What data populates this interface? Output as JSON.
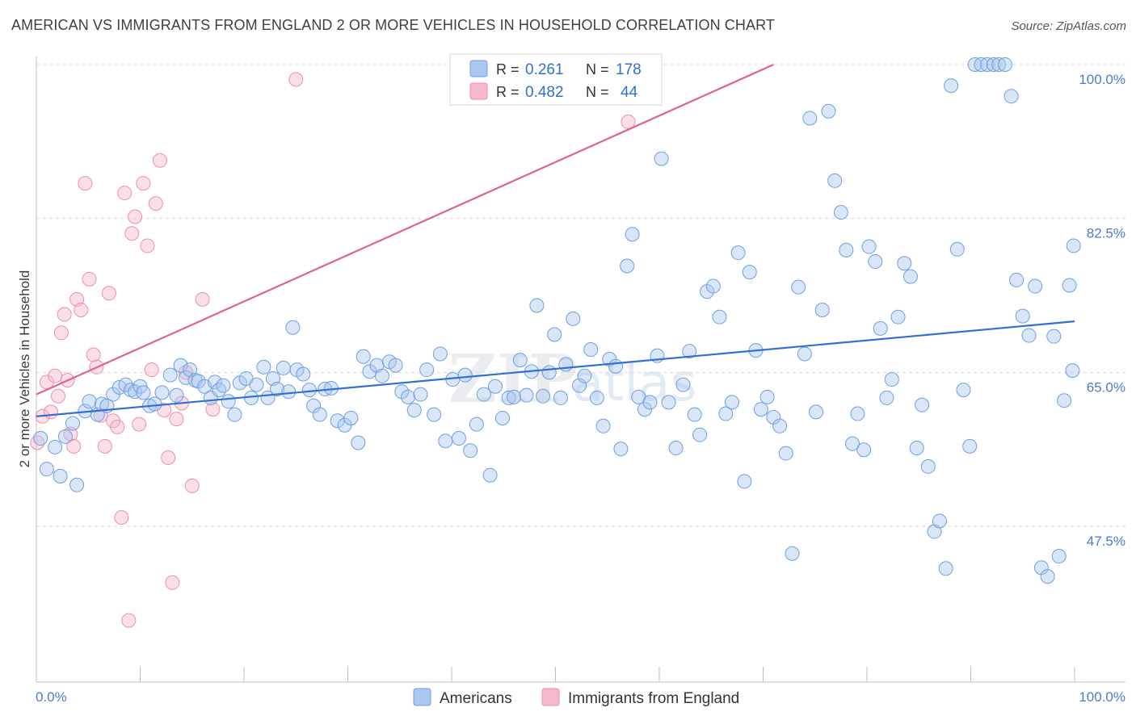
{
  "header": {
    "title": "AMERICAN VS IMMIGRANTS FROM ENGLAND 2 OR MORE VEHICLES IN HOUSEHOLD CORRELATION CHART",
    "source": "Source: ZipAtlas.com"
  },
  "watermark": {
    "part1": "ZIP",
    "part2": "atlas"
  },
  "legend_top": {
    "rows": [
      {
        "r_label": "R =",
        "r_value": "0.261",
        "n_label": "N =",
        "n_value": "178",
        "color": "#a9c7ef"
      },
      {
        "r_label": "R =",
        "r_value": "0.482",
        "n_label": "N =",
        "n_value": "44",
        "color": "#f6b9cb"
      }
    ]
  },
  "legend_bottom": {
    "items": [
      {
        "label": "Americans",
        "color": "#a9c7ef"
      },
      {
        "label": "Immigrants from England",
        "color": "#f6b9cb"
      }
    ]
  },
  "chart_data": {
    "type": "scatter",
    "title": "AMERICAN VS IMMIGRANTS FROM ENGLAND 2 OR MORE VEHICLES IN HOUSEHOLD CORRELATION CHART",
    "ylabel": "2 or more Vehicles in Household",
    "xlabel": "",
    "xlim": [
      0,
      100
    ],
    "ylim": [
      30,
      100
    ],
    "x_tick_labels": [
      "0.0%",
      "100.0%"
    ],
    "y_ticks": [
      {
        "value": 47.5,
        "label": "47.5%"
      },
      {
        "value": 65.0,
        "label": "65.0%"
      },
      {
        "value": 82.5,
        "label": "82.5%"
      },
      {
        "value": 100.0,
        "label": "100.0%"
      }
    ],
    "grid": "horizontal dashed",
    "legend_position": "top-center",
    "colors": {
      "americans": "#a9c7ef",
      "americans_stroke": "#6f9fe0",
      "americans_line": "#2f6fd6",
      "england": "#f6b9cb",
      "england_stroke": "#ec8fab",
      "england_line": "#e0628c"
    },
    "series": [
      {
        "name": "Americans",
        "trendline": {
          "x": [
            0,
            100
          ],
          "y": [
            60.0,
            70.8
          ]
        },
        "points": [
          [
            0.4,
            57.5
          ],
          [
            1.0,
            54.0
          ],
          [
            1.8,
            56.5
          ],
          [
            2.3,
            53.2
          ],
          [
            2.8,
            57.7
          ],
          [
            3.5,
            59.2
          ],
          [
            3.9,
            52.2
          ],
          [
            4.7,
            60.6
          ],
          [
            5.1,
            61.7
          ],
          [
            5.9,
            60.2
          ],
          [
            6.3,
            61.4
          ],
          [
            6.8,
            61.2
          ],
          [
            7.4,
            62.5
          ],
          [
            8.0,
            63.3
          ],
          [
            8.6,
            63.6
          ],
          [
            9.1,
            63.0
          ],
          [
            9.5,
            62.8
          ],
          [
            10.0,
            63.4
          ],
          [
            10.3,
            62.7
          ],
          [
            10.9,
            61.2
          ],
          [
            11.4,
            61.4
          ],
          [
            12.1,
            62.7
          ],
          [
            12.9,
            64.7
          ],
          [
            13.5,
            62.4
          ],
          [
            13.9,
            65.8
          ],
          [
            14.4,
            64.4
          ],
          [
            14.8,
            65.3
          ],
          [
            15.3,
            64.1
          ],
          [
            15.6,
            64.0
          ],
          [
            16.2,
            63.4
          ],
          [
            16.8,
            62.1
          ],
          [
            17.2,
            63.9
          ],
          [
            17.6,
            63.0
          ],
          [
            18.0,
            63.5
          ],
          [
            18.5,
            61.7
          ],
          [
            19.1,
            60.2
          ],
          [
            19.6,
            63.8
          ],
          [
            20.2,
            64.3
          ],
          [
            20.7,
            62.1
          ],
          [
            21.2,
            63.6
          ],
          [
            21.9,
            65.6
          ],
          [
            22.3,
            62.1
          ],
          [
            22.8,
            64.3
          ],
          [
            23.2,
            63.1
          ],
          [
            23.8,
            65.5
          ],
          [
            24.3,
            62.8
          ],
          [
            24.7,
            70.1
          ],
          [
            25.1,
            65.3
          ],
          [
            25.7,
            64.8
          ],
          [
            26.3,
            63.0
          ],
          [
            26.7,
            61.2
          ],
          [
            27.3,
            60.2
          ],
          [
            27.8,
            63.1
          ],
          [
            28.4,
            63.2
          ],
          [
            29.0,
            59.5
          ],
          [
            29.7,
            59.0
          ],
          [
            30.3,
            59.8
          ],
          [
            31.0,
            57.0
          ],
          [
            31.5,
            66.8
          ],
          [
            32.1,
            65.1
          ],
          [
            32.8,
            65.8
          ],
          [
            33.3,
            64.6
          ],
          [
            34.0,
            66.2
          ],
          [
            34.6,
            65.8
          ],
          [
            35.2,
            62.8
          ],
          [
            35.8,
            62.2
          ],
          [
            36.4,
            60.7
          ],
          [
            37.0,
            62.5
          ],
          [
            37.6,
            65.3
          ],
          [
            38.3,
            60.2
          ],
          [
            38.9,
            67.1
          ],
          [
            39.4,
            57.2
          ],
          [
            40.1,
            64.2
          ],
          [
            40.7,
            57.5
          ],
          [
            41.3,
            64.7
          ],
          [
            41.8,
            56.1
          ],
          [
            42.4,
            59.1
          ],
          [
            43.1,
            62.5
          ],
          [
            43.7,
            53.3
          ],
          [
            44.2,
            63.4
          ],
          [
            44.9,
            59.8
          ],
          [
            45.5,
            62.1
          ],
          [
            46.0,
            62.2
          ],
          [
            46.6,
            66.4
          ],
          [
            47.2,
            62.4
          ],
          [
            47.7,
            65.1
          ],
          [
            48.2,
            72.6
          ],
          [
            48.8,
            62.3
          ],
          [
            49.4,
            65.0
          ],
          [
            49.9,
            69.3
          ],
          [
            50.5,
            62.1
          ],
          [
            51.0,
            65.9
          ],
          [
            51.7,
            71.1
          ],
          [
            52.3,
            63.5
          ],
          [
            52.8,
            64.6
          ],
          [
            53.4,
            67.6
          ],
          [
            54.0,
            62.1
          ],
          [
            54.6,
            58.9
          ],
          [
            55.2,
            66.5
          ],
          [
            55.8,
            65.7
          ],
          [
            56.3,
            56.3
          ],
          [
            56.9,
            77.1
          ],
          [
            57.4,
            80.7
          ],
          [
            58.0,
            62.2
          ],
          [
            58.6,
            60.8
          ],
          [
            59.1,
            61.6
          ],
          [
            59.8,
            66.9
          ],
          [
            60.2,
            89.3
          ],
          [
            60.9,
            61.6
          ],
          [
            61.6,
            56.4
          ],
          [
            62.3,
            63.6
          ],
          [
            62.9,
            67.4
          ],
          [
            63.4,
            60.2
          ],
          [
            63.9,
            57.9
          ],
          [
            64.6,
            74.2
          ],
          [
            65.2,
            74.8
          ],
          [
            65.8,
            71.3
          ],
          [
            66.4,
            60.3
          ],
          [
            67.0,
            61.6
          ],
          [
            67.6,
            78.6
          ],
          [
            68.2,
            52.6
          ],
          [
            68.7,
            76.4
          ],
          [
            69.3,
            67.5
          ],
          [
            69.8,
            60.8
          ],
          [
            70.4,
            62.2
          ],
          [
            71.0,
            59.9
          ],
          [
            71.6,
            58.9
          ],
          [
            72.2,
            55.8
          ],
          [
            72.8,
            44.4
          ],
          [
            73.4,
            74.7
          ],
          [
            74.0,
            67.1
          ],
          [
            74.5,
            93.9
          ],
          [
            75.1,
            60.5
          ],
          [
            75.7,
            72.1
          ],
          [
            76.3,
            94.7
          ],
          [
            76.9,
            86.8
          ],
          [
            77.5,
            83.2
          ],
          [
            78.0,
            78.9
          ],
          [
            78.6,
            56.9
          ],
          [
            79.1,
            60.3
          ],
          [
            79.7,
            56.2
          ],
          [
            80.2,
            79.3
          ],
          [
            80.8,
            77.6
          ],
          [
            81.3,
            70.0
          ],
          [
            81.9,
            62.1
          ],
          [
            82.4,
            64.2
          ],
          [
            83.0,
            71.3
          ],
          [
            83.6,
            77.4
          ],
          [
            84.2,
            75.9
          ],
          [
            84.8,
            56.4
          ],
          [
            85.3,
            61.3
          ],
          [
            85.9,
            54.3
          ],
          [
            86.5,
            46.9
          ],
          [
            87.0,
            48.1
          ],
          [
            87.6,
            42.7
          ],
          [
            88.1,
            97.6
          ],
          [
            88.7,
            79.0
          ],
          [
            89.3,
            63.0
          ],
          [
            89.9,
            56.6
          ],
          [
            90.4,
            100.0
          ],
          [
            91.0,
            100.0
          ],
          [
            91.6,
            100.0
          ],
          [
            92.2,
            100.0
          ],
          [
            92.7,
            100.0
          ],
          [
            93.3,
            100.0
          ],
          [
            93.9,
            96.4
          ],
          [
            94.4,
            75.5
          ],
          [
            95.0,
            71.4
          ],
          [
            95.6,
            69.2
          ],
          [
            96.2,
            74.8
          ],
          [
            96.8,
            42.8
          ],
          [
            97.4,
            41.8
          ],
          [
            98.0,
            69.1
          ],
          [
            98.5,
            44.1
          ],
          [
            99.0,
            61.8
          ],
          [
            99.5,
            74.9
          ],
          [
            99.8,
            65.2
          ],
          [
            99.9,
            79.4
          ]
        ]
      },
      {
        "name": "Immigrants from England",
        "trendline": {
          "x": [
            0,
            71.0
          ],
          "y": [
            62.5,
            100.0
          ]
        },
        "points": [
          [
            0.1,
            57.0
          ],
          [
            0.6,
            60.0
          ],
          [
            1.0,
            63.9
          ],
          [
            1.4,
            60.5
          ],
          [
            1.8,
            64.6
          ],
          [
            2.1,
            62.3
          ],
          [
            2.4,
            69.5
          ],
          [
            2.7,
            71.6
          ],
          [
            3.0,
            64.1
          ],
          [
            3.3,
            58.0
          ],
          [
            3.6,
            56.6
          ],
          [
            3.9,
            73.3
          ],
          [
            4.3,
            72.1
          ],
          [
            4.7,
            86.5
          ],
          [
            5.1,
            75.6
          ],
          [
            5.5,
            67.0
          ],
          [
            5.8,
            65.6
          ],
          [
            6.2,
            60.1
          ],
          [
            6.6,
            56.6
          ],
          [
            7.0,
            74.0
          ],
          [
            7.4,
            59.5
          ],
          [
            7.8,
            58.8
          ],
          [
            8.2,
            48.5
          ],
          [
            8.5,
            85.4
          ],
          [
            8.9,
            36.8
          ],
          [
            9.2,
            80.8
          ],
          [
            9.5,
            82.7
          ],
          [
            9.9,
            59.1
          ],
          [
            10.3,
            86.5
          ],
          [
            10.7,
            79.4
          ],
          [
            11.1,
            65.3
          ],
          [
            11.5,
            84.2
          ],
          [
            11.9,
            89.1
          ],
          [
            12.3,
            60.7
          ],
          [
            12.7,
            55.3
          ],
          [
            13.1,
            41.1
          ],
          [
            13.5,
            59.7
          ],
          [
            14.0,
            61.5
          ],
          [
            14.4,
            65.0
          ],
          [
            15.0,
            52.1
          ],
          [
            16.0,
            73.3
          ],
          [
            17.0,
            60.8
          ],
          [
            25.0,
            98.3
          ],
          [
            57.0,
            93.5
          ]
        ]
      }
    ]
  }
}
